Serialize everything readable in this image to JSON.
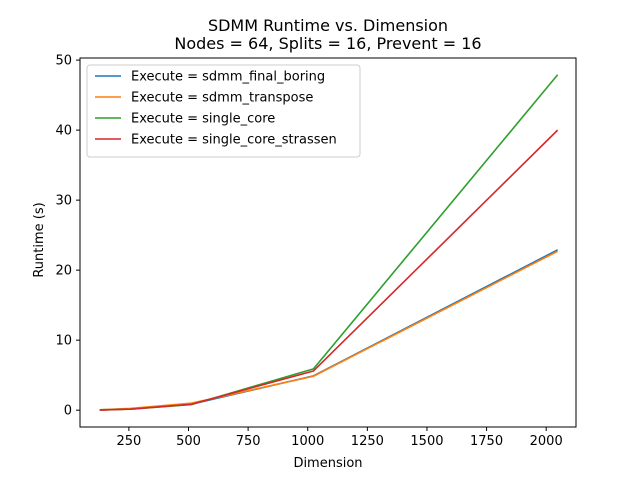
{
  "chart_data": {
    "type": "line",
    "title": "SDMM Runtime vs. Dimension",
    "subtitle": "Nodes = 64, Splits = 16, Prevent = 16",
    "xlabel": "Dimension",
    "ylabel": "Runtime (s)",
    "xlim": [
      45,
      2125
    ],
    "ylim": [
      -2.4,
      50.3
    ],
    "xticks": [
      250,
      500,
      750,
      1000,
      1250,
      1500,
      1750,
      2000
    ],
    "yticks": [
      0,
      10,
      20,
      30,
      40,
      50
    ],
    "grid": false,
    "legend_position": "top-left",
    "x": [
      128,
      256,
      512,
      1024,
      2048
    ],
    "series": [
      {
        "name": "Execute = sdmm_final_boring",
        "color": "#1f77b4",
        "values": [
          0.05,
          0.2,
          0.85,
          4.9,
          22.9
        ]
      },
      {
        "name": "Execute = sdmm_transpose",
        "color": "#ff7f0e",
        "values": [
          0.05,
          0.25,
          1.0,
          4.85,
          22.7
        ]
      },
      {
        "name": "Execute = single_core",
        "color": "#2ca02c",
        "values": [
          0.02,
          0.15,
          0.8,
          5.9,
          47.9
        ]
      },
      {
        "name": "Execute = single_core_strassen",
        "color": "#d62728",
        "values": [
          0.02,
          0.15,
          0.85,
          5.6,
          40.0
        ]
      }
    ]
  }
}
